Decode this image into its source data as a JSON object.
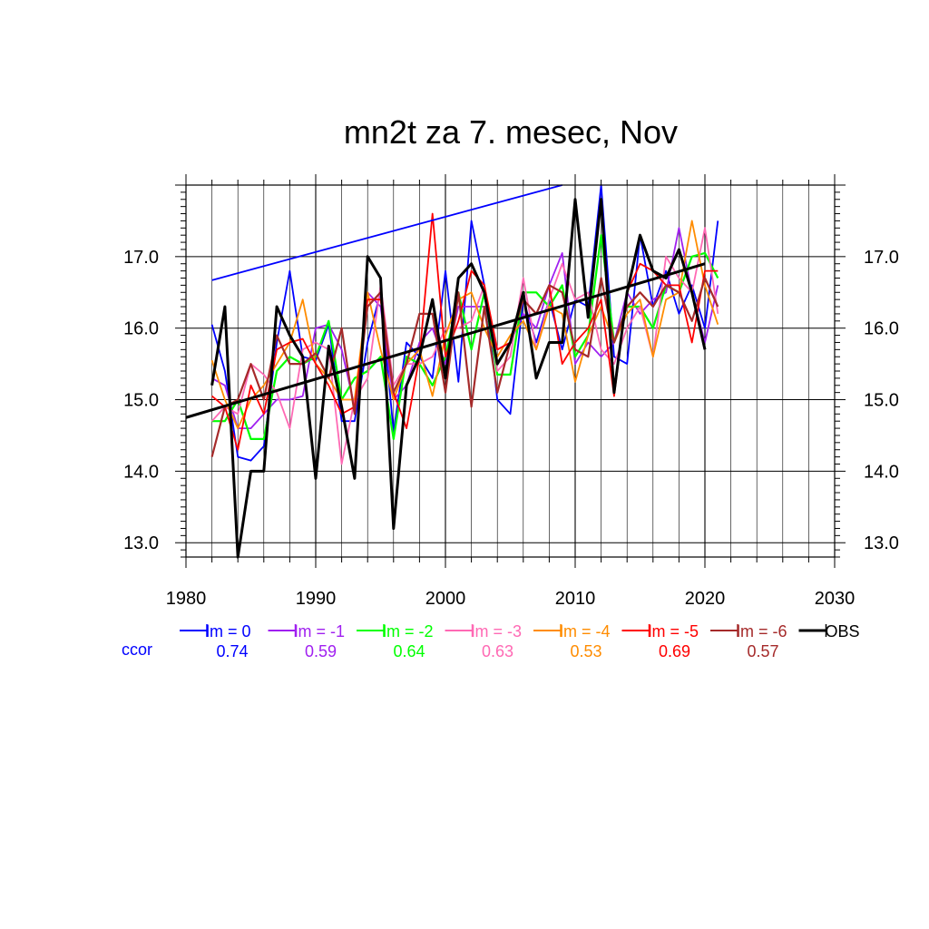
{
  "chart_data": {
    "type": "line",
    "title": "mn2t za 7. mesec, Nov",
    "xlabel": "",
    "ylabel": "",
    "xlim": [
      1980,
      2030
    ],
    "ylim": [
      12.8,
      18.0
    ],
    "x_ticks": [
      1980,
      1990,
      2000,
      2010,
      2020,
      2030
    ],
    "x_tick_labels": [
      "1980",
      "1990",
      "2000",
      "2010",
      "2020",
      "2030"
    ],
    "y_ticks": [
      13.0,
      14.0,
      15.0,
      16.0,
      17.0
    ],
    "y_tick_labels": [
      "13.0",
      "14.0",
      "15.0",
      "16.0",
      "17.0"
    ],
    "grid": true,
    "legend_position": "bottom",
    "ccor_label": "ccor",
    "x": [
      1982,
      1983,
      1984,
      1985,
      1986,
      1987,
      1988,
      1989,
      1990,
      1991,
      1992,
      1993,
      1994,
      1995,
      1996,
      1997,
      1998,
      1999,
      2000,
      2001,
      2002,
      2003,
      2004,
      2005,
      2006,
      2007,
      2008,
      2009,
      2010,
      2011,
      2012,
      2013,
      2014,
      2015,
      2016,
      2017,
      2018,
      2019,
      2020,
      2021
    ],
    "series": [
      {
        "name": "lm = 0",
        "ccor": "0.74",
        "color": "#0000ff",
        "values": [
          16.05,
          15.4,
          14.2,
          14.15,
          14.35,
          15.8,
          16.8,
          15.6,
          15.55,
          16.05,
          14.7,
          14.7,
          15.8,
          16.5,
          14.55,
          15.8,
          15.6,
          15.3,
          16.8,
          15.25,
          17.5,
          16.6,
          15.0,
          14.8,
          16.4,
          15.8,
          16.4,
          15.7,
          16.4,
          16.3,
          18.0,
          15.6,
          15.5,
          17.3,
          16.3,
          16.8,
          16.2,
          16.6,
          16.0,
          17.5
        ]
      },
      {
        "name": "lm = -1",
        "ccor": "0.59",
        "color": "#a020f0",
        "values": [
          15.3,
          15.2,
          14.6,
          14.6,
          14.8,
          15.0,
          15.0,
          15.05,
          16.0,
          16.05,
          15.7,
          14.9,
          16.5,
          16.3,
          15.0,
          15.2,
          15.8,
          16.0,
          15.5,
          16.3,
          16.3,
          16.3,
          15.7,
          15.8,
          16.2,
          16.0,
          16.6,
          17.05,
          15.5,
          15.8,
          15.6,
          15.8,
          16.5,
          16.2,
          16.4,
          16.5,
          17.4,
          16.5,
          15.8,
          16.6
        ]
      },
      {
        "name": "lm = -2",
        "ccor": "0.64",
        "color": "#00ff00",
        "values": [
          14.7,
          14.7,
          15.0,
          14.45,
          14.45,
          15.4,
          15.6,
          15.5,
          15.6,
          16.1,
          15.0,
          15.3,
          15.4,
          15.6,
          14.45,
          15.6,
          15.5,
          15.2,
          15.6,
          16.5,
          15.7,
          16.5,
          15.35,
          15.35,
          16.5,
          16.5,
          16.3,
          16.6,
          15.6,
          15.9,
          17.3,
          15.8,
          16.3,
          16.3,
          16.0,
          16.6,
          16.5,
          17.0,
          17.05,
          16.7
        ]
      },
      {
        "name": "lm = -3",
        "ccor": "0.63",
        "color": "#ff69b4",
        "values": [
          14.7,
          14.9,
          14.8,
          15.5,
          15.35,
          15.1,
          14.6,
          15.7,
          15.8,
          15.7,
          14.1,
          15.0,
          15.3,
          16.6,
          15.2,
          15.5,
          15.5,
          15.6,
          16.0,
          16.0,
          16.1,
          16.6,
          15.4,
          15.6,
          16.7,
          15.7,
          16.4,
          16.9,
          16.4,
          16.5,
          15.7,
          15.5,
          16.0,
          16.3,
          15.6,
          17.0,
          16.7,
          16.5,
          17.4,
          16.2
        ]
      },
      {
        "name": "lm = -4",
        "ccor": "0.53",
        "color": "#ff8c00",
        "values": [
          15.55,
          15.0,
          14.6,
          15.0,
          15.2,
          15.5,
          15.8,
          16.4,
          15.5,
          15.3,
          15.0,
          15.0,
          16.5,
          15.7,
          15.0,
          15.5,
          15.7,
          15.05,
          15.9,
          16.4,
          16.5,
          16.0,
          15.6,
          15.9,
          16.1,
          15.7,
          16.3,
          16.2,
          15.25,
          15.9,
          16.3,
          15.8,
          16.2,
          16.4,
          15.6,
          16.4,
          16.5,
          17.5,
          16.6,
          16.05
        ]
      },
      {
        "name": "lm = -5",
        "ccor": "0.69",
        "color": "#ff0000",
        "values": [
          15.05,
          14.9,
          14.3,
          15.2,
          14.8,
          15.7,
          15.8,
          15.85,
          15.5,
          15.2,
          14.8,
          14.9,
          16.4,
          16.4,
          15.1,
          14.6,
          15.6,
          17.6,
          15.6,
          16.1,
          16.8,
          16.6,
          15.7,
          15.8,
          16.4,
          16.2,
          16.6,
          15.5,
          15.8,
          16.0,
          16.4,
          15.05,
          16.5,
          16.9,
          16.8,
          16.6,
          16.6,
          15.8,
          16.8,
          16.8
        ]
      },
      {
        "name": "lm = -6",
        "ccor": "0.57",
        "color": "#a52a2a",
        "values": [
          14.2,
          14.9,
          15.0,
          15.5,
          15.0,
          15.9,
          15.5,
          15.5,
          15.65,
          15.3,
          16.0,
          14.8,
          16.3,
          16.5,
          15.1,
          15.5,
          16.2,
          16.2,
          15.1,
          16.5,
          14.9,
          16.3,
          15.1,
          15.8,
          16.4,
          16.2,
          16.6,
          16.5,
          15.7,
          15.6,
          16.7,
          15.8,
          16.3,
          16.5,
          16.3,
          16.6,
          16.5,
          16.1,
          16.7,
          16.3
        ]
      },
      {
        "name": "OBS",
        "ccor": "",
        "color": "#000000",
        "values": [
          15.2,
          16.3,
          12.8,
          14.0,
          14.0,
          16.3,
          15.9,
          15.6,
          13.9,
          15.75,
          14.9,
          13.9,
          17.0,
          16.7,
          13.2,
          15.2,
          15.6,
          16.4,
          15.3,
          16.7,
          16.9,
          16.5,
          15.5,
          15.8,
          16.5,
          15.3,
          15.8,
          15.8,
          17.8,
          16.15,
          17.8,
          15.1,
          16.5,
          17.3,
          16.8,
          16.7,
          17.1,
          16.5,
          15.7,
          null
        ]
      }
    ],
    "trend_lines": [
      {
        "color": "#0000ff",
        "x": [
          1982,
          2009
        ],
        "y": [
          16.67,
          18.0
        ]
      },
      {
        "color": "#000000",
        "x": [
          1980,
          2020
        ],
        "y": [
          14.75,
          16.9
        ]
      }
    ]
  }
}
